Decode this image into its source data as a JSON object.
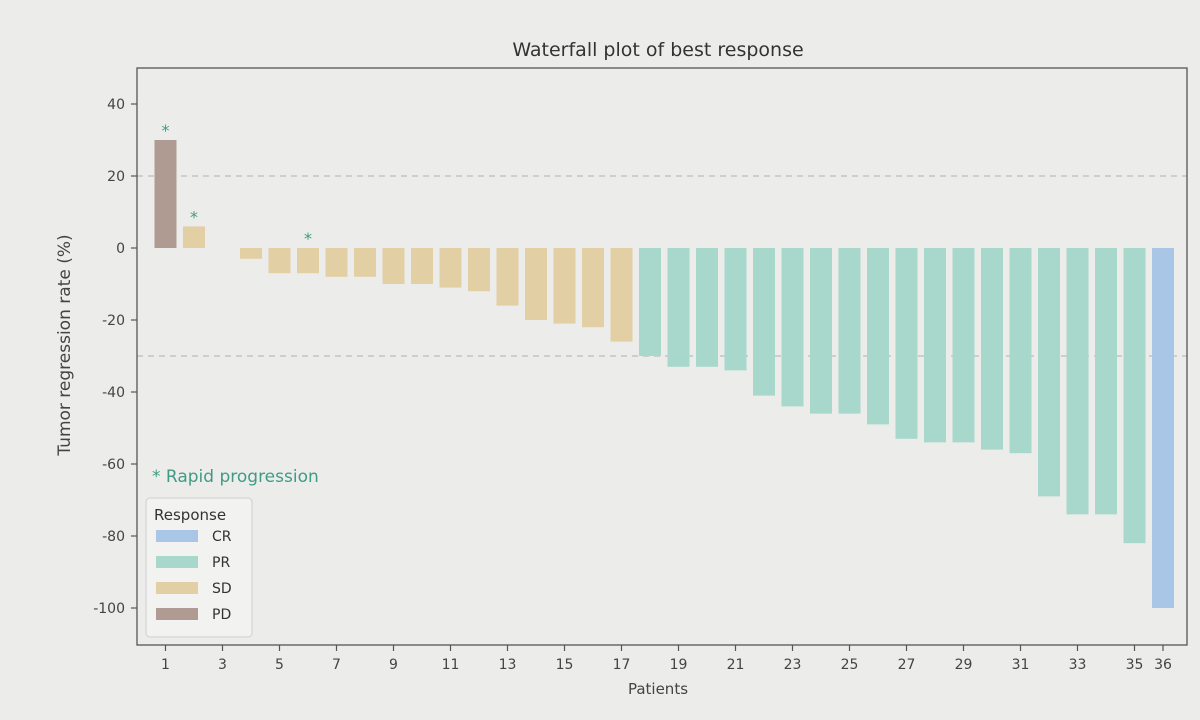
{
  "chart_data": {
    "type": "bar",
    "title": "Waterfall plot of best response",
    "xlabel": "Patients",
    "ylabel": "Tumor regression rate (%)",
    "ylim": [
      -110,
      50
    ],
    "yticks": [
      40,
      20,
      0,
      -20,
      -40,
      -60,
      -80,
      -100
    ],
    "xticks": [
      "1",
      "3",
      "5",
      "7",
      "9",
      "11",
      "13",
      "15",
      "17",
      "19",
      "21",
      "23",
      "25",
      "27",
      "29",
      "31",
      "33",
      "35",
      "36"
    ],
    "reference_lines": [
      20,
      -30
    ],
    "grid": false,
    "legend": {
      "title": "Response",
      "placement": "lower-left",
      "entries": [
        "CR",
        "PR",
        "SD",
        "PD"
      ]
    },
    "annotation": "* Rapid  progression",
    "marker_symbol": "*",
    "colors": {
      "CR": "#a9c6e6",
      "PR": "#a8d8cc",
      "SD": "#e3cfa4",
      "PD": "#b09b92",
      "marker": "#3f9b86",
      "refline": "#bdbdbd",
      "axis": "#555555"
    },
    "bars": [
      {
        "patient": 1,
        "value": 30,
        "response": "PD",
        "rapid_progression": true
      },
      {
        "patient": 2,
        "value": 6,
        "response": "SD",
        "rapid_progression": true
      },
      {
        "patient": 3,
        "value": 0,
        "response": "SD",
        "rapid_progression": false
      },
      {
        "patient": 4,
        "value": -3,
        "response": "SD",
        "rapid_progression": false
      },
      {
        "patient": 5,
        "value": -7,
        "response": "SD",
        "rapid_progression": false
      },
      {
        "patient": 6,
        "value": -7,
        "response": "SD",
        "rapid_progression": true
      },
      {
        "patient": 7,
        "value": -8,
        "response": "SD",
        "rapid_progression": false
      },
      {
        "patient": 8,
        "value": -8,
        "response": "SD",
        "rapid_progression": false
      },
      {
        "patient": 9,
        "value": -10,
        "response": "SD",
        "rapid_progression": false
      },
      {
        "patient": 10,
        "value": -10,
        "response": "SD",
        "rapid_progression": false
      },
      {
        "patient": 11,
        "value": -11,
        "response": "SD",
        "rapid_progression": false
      },
      {
        "patient": 12,
        "value": -12,
        "response": "SD",
        "rapid_progression": false
      },
      {
        "patient": 13,
        "value": -16,
        "response": "SD",
        "rapid_progression": false
      },
      {
        "patient": 14,
        "value": -20,
        "response": "SD",
        "rapid_progression": false
      },
      {
        "patient": 15,
        "value": -21,
        "response": "SD",
        "rapid_progression": false
      },
      {
        "patient": 16,
        "value": -22,
        "response": "SD",
        "rapid_progression": false
      },
      {
        "patient": 17,
        "value": -26,
        "response": "SD",
        "rapid_progression": false
      },
      {
        "patient": 18,
        "value": -30,
        "response": "PR",
        "rapid_progression": false
      },
      {
        "patient": 19,
        "value": -33,
        "response": "PR",
        "rapid_progression": false
      },
      {
        "patient": 20,
        "value": -33,
        "response": "PR",
        "rapid_progression": false
      },
      {
        "patient": 21,
        "value": -34,
        "response": "PR",
        "rapid_progression": false
      },
      {
        "patient": 22,
        "value": -41,
        "response": "PR",
        "rapid_progression": false
      },
      {
        "patient": 23,
        "value": -44,
        "response": "PR",
        "rapid_progression": false
      },
      {
        "patient": 24,
        "value": -46,
        "response": "PR",
        "rapid_progression": false
      },
      {
        "patient": 25,
        "value": -46,
        "response": "PR",
        "rapid_progression": false
      },
      {
        "patient": 26,
        "value": -49,
        "response": "PR",
        "rapid_progression": false
      },
      {
        "patient": 27,
        "value": -53,
        "response": "PR",
        "rapid_progression": false
      },
      {
        "patient": 28,
        "value": -54,
        "response": "PR",
        "rapid_progression": false
      },
      {
        "patient": 29,
        "value": -54,
        "response": "PR",
        "rapid_progression": false
      },
      {
        "patient": 30,
        "value": -56,
        "response": "PR",
        "rapid_progression": false
      },
      {
        "patient": 31,
        "value": -57,
        "response": "PR",
        "rapid_progression": false
      },
      {
        "patient": 32,
        "value": -69,
        "response": "PR",
        "rapid_progression": false
      },
      {
        "patient": 33,
        "value": -74,
        "response": "PR",
        "rapid_progression": false
      },
      {
        "patient": 34,
        "value": -74,
        "response": "PR",
        "rapid_progression": false
      },
      {
        "patient": 35,
        "value": -82,
        "response": "PR",
        "rapid_progression": false
      },
      {
        "patient": 36,
        "value": -100,
        "response": "CR",
        "rapid_progression": false
      }
    ]
  }
}
